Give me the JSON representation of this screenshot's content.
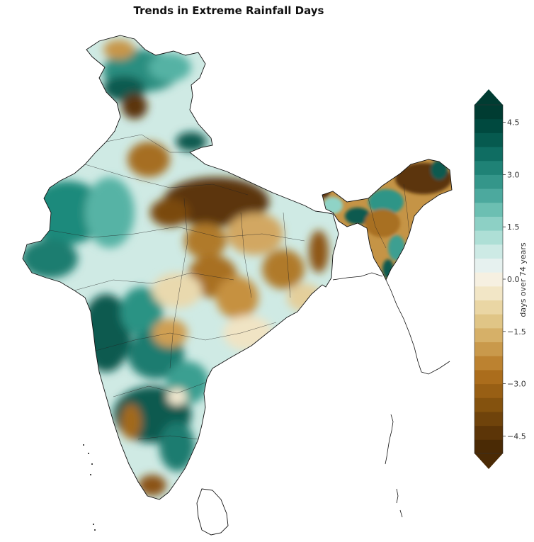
{
  "title": "Trends in Extreme Rainfall Days",
  "colorbar": {
    "label": "days over 74 years",
    "ticks": [
      "4.5",
      "3.0",
      "1.5",
      "0.0",
      "−1.5",
      "−3.0",
      "−4.5"
    ],
    "tick_values": [
      4.5,
      3.0,
      1.5,
      0.0,
      -1.5,
      -3.0,
      -4.5
    ],
    "min": -5.0,
    "max": 5.0,
    "step": 0.5,
    "extend": "both",
    "colors": [
      "#4a2a05",
      "#5c3508",
      "#6f430b",
      "#84520e",
      "#985f14",
      "#ab6d1c",
      "#bc8230",
      "#c9994b",
      "#d6b068",
      "#e0c586",
      "#ead6a4",
      "#f2e6c6",
      "#f6f0e1",
      "#e6f1ef",
      "#cdeae5",
      "#aedfd6",
      "#8dd0c5",
      "#6cbfb2",
      "#4ca99e",
      "#34968a",
      "#1f8276",
      "#0f6d62",
      "#065a4f",
      "#00493f",
      "#003c32"
    ]
  },
  "map_colors": {
    "very_wet": "#0c5a4f",
    "wet": "#3aa294",
    "moist": "#8fd3c6",
    "neutral": "#f1ece0",
    "dry": "#d9b476",
    "very_dry": "#b07a2c",
    "extreme_dry": "#5b3408",
    "border": "#111111"
  }
}
